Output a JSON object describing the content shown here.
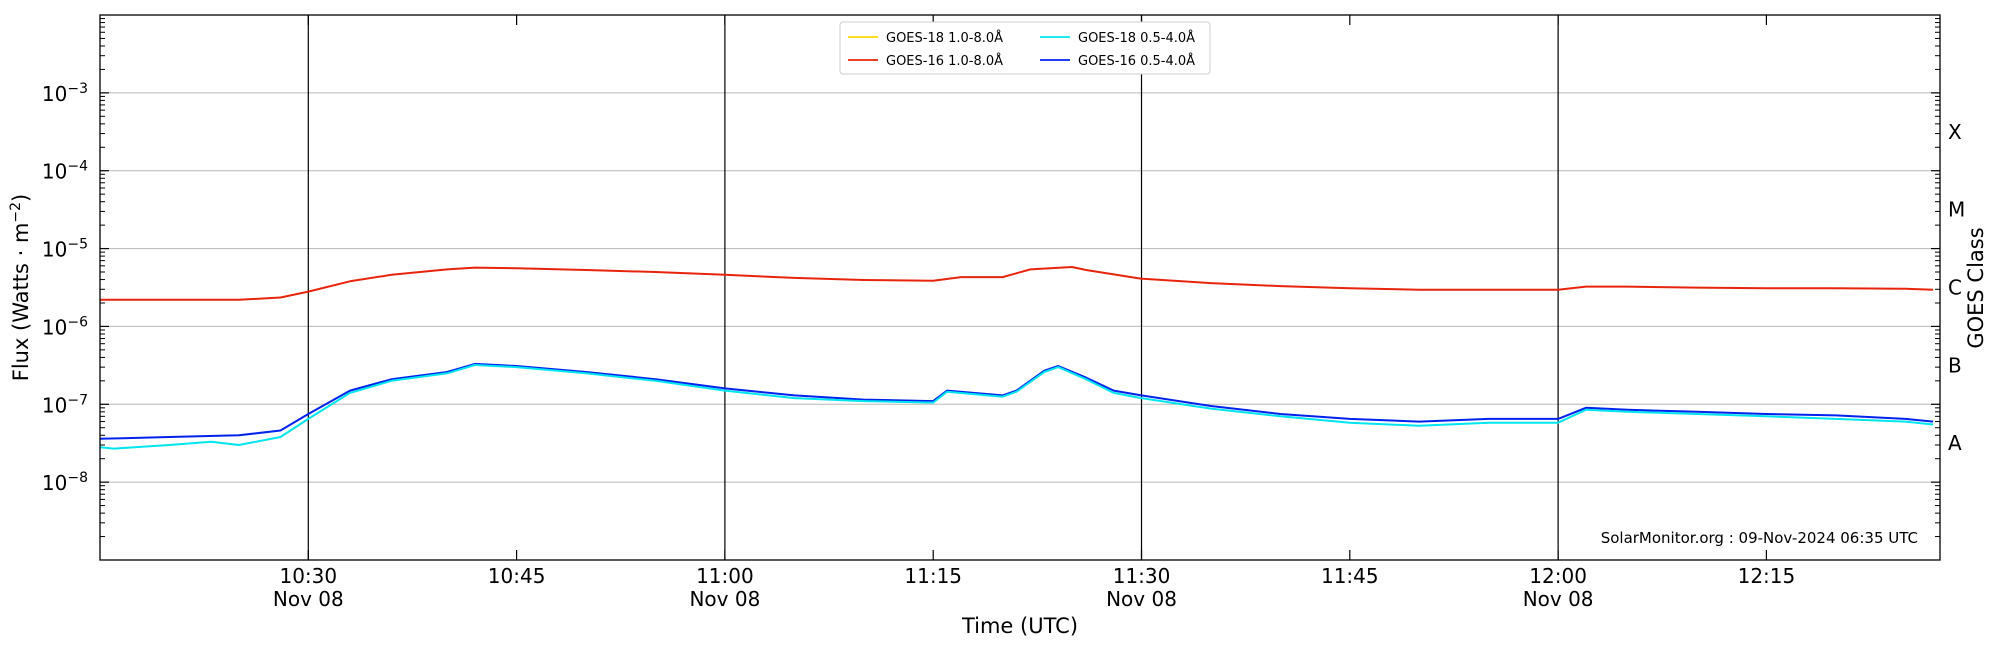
{
  "chart_data": {
    "type": "line",
    "xlabel": "Time (UTC)",
    "ylabel_main": "Flux (Watts · m",
    "ylabel_exp": "−2",
    "ylabel_close": ")",
    "right_label": "GOES Class",
    "y_scale": "log",
    "y_exponent_range": [
      -9,
      -2
    ],
    "x_range_minutes": [
      615,
      747.5
    ],
    "x_ticks": [
      {
        "t": 630,
        "time": "10:30",
        "date": "Nov 08",
        "major": true
      },
      {
        "t": 645,
        "time": "10:45",
        "date": "",
        "major": false
      },
      {
        "t": 660,
        "time": "11:00",
        "date": "Nov 08",
        "major": true
      },
      {
        "t": 675,
        "time": "11:15",
        "date": "",
        "major": false
      },
      {
        "t": 690,
        "time": "11:30",
        "date": "Nov 08",
        "major": true
      },
      {
        "t": 705,
        "time": "11:45",
        "date": "",
        "major": false
      },
      {
        "t": 720,
        "time": "12:00",
        "date": "Nov 08",
        "major": true
      },
      {
        "t": 735,
        "time": "12:15",
        "date": "",
        "major": false
      }
    ],
    "y_ticks": [
      {
        "exp": -8,
        "label": "10",
        "sup": "−8"
      },
      {
        "exp": -7,
        "label": "10",
        "sup": "−7"
      },
      {
        "exp": -6,
        "label": "10",
        "sup": "−6"
      },
      {
        "exp": -5,
        "label": "10",
        "sup": "−5"
      },
      {
        "exp": -4,
        "label": "10",
        "sup": "−4"
      },
      {
        "exp": -3,
        "label": "10",
        "sup": "−3"
      }
    ],
    "goes_classes": [
      {
        "label": "A",
        "exp": -7.5
      },
      {
        "label": "B",
        "exp": -6.5
      },
      {
        "label": "C",
        "exp": -5.5
      },
      {
        "label": "M",
        "exp": -4.5
      },
      {
        "label": "X",
        "exp": -3.5
      }
    ],
    "legend": [
      {
        "name": "GOES-18 1.0-8.0Å",
        "color": "#ffd700"
      },
      {
        "name": "GOES-18 0.5-4.0Å",
        "color": "#00e5ee"
      },
      {
        "name": "GOES-16 1.0-8.0Å",
        "color": "#e8250c"
      },
      {
        "name": "GOES-16 0.5-4.0Å",
        "color": "#0022ee"
      }
    ],
    "credit": "SolarMonitor.org : 09-Nov-2024 06:35 UTC",
    "series": [
      {
        "name": "GOES-16 1.0-8.0Å",
        "color": "#e8250c",
        "x": [
          615,
          620,
          625,
          628,
          630,
          633,
          636,
          640,
          642,
          645,
          650,
          655,
          660,
          665,
          670,
          675,
          677,
          680,
          682,
          685,
          686,
          690,
          695,
          700,
          705,
          710,
          715,
          720,
          722,
          725,
          730,
          735,
          740,
          745,
          747
        ],
        "y": [
          2.2e-06,
          2.2e-06,
          2.2e-06,
          2.35e-06,
          2.8e-06,
          3.8e-06,
          4.6e-06,
          5.4e-06,
          5.7e-06,
          5.6e-06,
          5.3e-06,
          5e-06,
          4.6e-06,
          4.2e-06,
          3.95e-06,
          3.85e-06,
          4.3e-06,
          4.3e-06,
          5.4e-06,
          5.8e-06,
          5.3e-06,
          4.1e-06,
          3.6e-06,
          3.3e-06,
          3.1e-06,
          2.95e-06,
          2.95e-06,
          2.95e-06,
          3.25e-06,
          3.25e-06,
          3.15e-06,
          3.1e-06,
          3.1e-06,
          3.05e-06,
          2.95e-06
        ]
      },
      {
        "name": "GOES-16 0.5-4.0Å",
        "color": "#0022ee",
        "x": [
          615,
          620,
          625,
          628,
          630,
          633,
          636,
          640,
          642,
          645,
          650,
          655,
          660,
          665,
          670,
          675,
          676,
          680,
          681,
          683,
          684,
          686,
          688,
          690,
          695,
          700,
          705,
          710,
          715,
          720,
          722,
          725,
          730,
          735,
          740,
          745,
          747
        ],
        "y": [
          3.6e-08,
          3.8e-08,
          4e-08,
          4.6e-08,
          7.5e-08,
          1.5e-07,
          2.1e-07,
          2.6e-07,
          3.3e-07,
          3.1e-07,
          2.6e-07,
          2.1e-07,
          1.6e-07,
          1.3e-07,
          1.15e-07,
          1.1e-07,
          1.5e-07,
          1.3e-07,
          1.5e-07,
          2.7e-07,
          3.1e-07,
          2.2e-07,
          1.5e-07,
          1.3e-07,
          9.5e-08,
          7.5e-08,
          6.5e-08,
          6e-08,
          6.5e-08,
          6.5e-08,
          9e-08,
          8.5e-08,
          8e-08,
          7.5e-08,
          7.2e-08,
          6.5e-08,
          6e-08
        ]
      },
      {
        "name": "GOES-18 0.5-4.0Å",
        "color": "#00e5ee",
        "x": [
          615,
          616,
          620,
          623,
          625,
          628,
          630,
          633,
          636,
          640,
          642,
          645,
          650,
          655,
          660,
          665,
          670,
          675,
          676,
          680,
          681,
          683,
          684,
          686,
          688,
          690,
          695,
          700,
          705,
          710,
          715,
          720,
          722,
          725,
          730,
          735,
          740,
          745,
          747
        ],
        "y": [
          2.8e-08,
          2.7e-08,
          3e-08,
          3.3e-08,
          3e-08,
          3.8e-08,
          6.5e-08,
          1.4e-07,
          2e-07,
          2.5e-07,
          3.2e-07,
          3e-07,
          2.5e-07,
          2e-07,
          1.5e-07,
          1.2e-07,
          1.1e-07,
          1.05e-07,
          1.45e-07,
          1.25e-07,
          1.45e-07,
          2.6e-07,
          3e-07,
          2.1e-07,
          1.4e-07,
          1.2e-07,
          8.8e-08,
          7e-08,
          5.8e-08,
          5.3e-08,
          5.8e-08,
          5.8e-08,
          8.5e-08,
          8e-08,
          7.5e-08,
          7e-08,
          6.5e-08,
          6e-08,
          5.5e-08
        ]
      }
    ]
  }
}
